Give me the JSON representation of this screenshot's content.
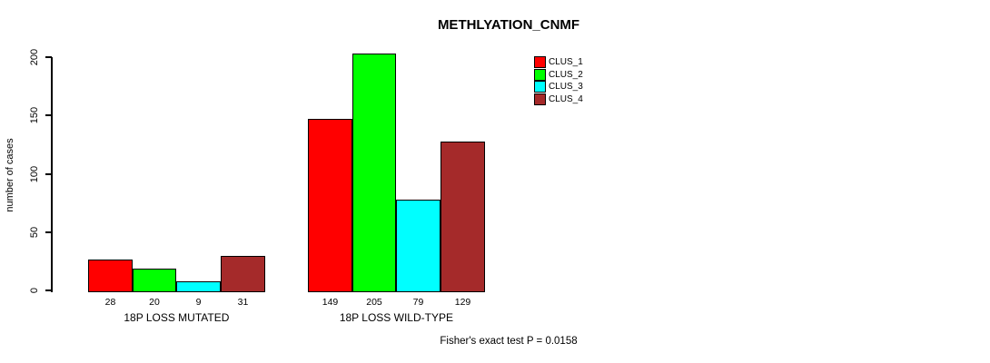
{
  "title": "METHLYATION_CNMF",
  "footer": "Fisher's exact test P = 0.0158",
  "colors": {
    "background": "#FFFFFF",
    "axis": "#000000",
    "text": "#000000",
    "clus_1": "#FF0000",
    "clus_2": "#00FF00",
    "clus_3": "#00FFFF",
    "clus_4": "#A52A2A"
  },
  "chart_data": {
    "type": "bar",
    "title": "METHLYATION_CNMF",
    "xlabel": "",
    "ylabel": "number of cases",
    "ylim": [
      0,
      200
    ],
    "yticks": [
      0,
      50,
      100,
      150,
      200
    ],
    "grid": false,
    "legend_position": "top-right",
    "legend_box": false,
    "bar_value_labels": true,
    "categories": [
      "18P LOSS MUTATED",
      "18P LOSS WILD-TYPE"
    ],
    "series": [
      {
        "name": "CLUS_1",
        "color": "#FF0000",
        "values": [
          28,
          149
        ]
      },
      {
        "name": "CLUS_2",
        "color": "#00FF00",
        "values": [
          20,
          205
        ]
      },
      {
        "name": "CLUS_3",
        "color": "#00FFFF",
        "values": [
          9,
          79
        ]
      },
      {
        "name": "CLUS_4",
        "color": "#A52A2A",
        "values": [
          31,
          129
        ]
      }
    ],
    "annotation": "Fisher's exact test P = 0.0158"
  }
}
